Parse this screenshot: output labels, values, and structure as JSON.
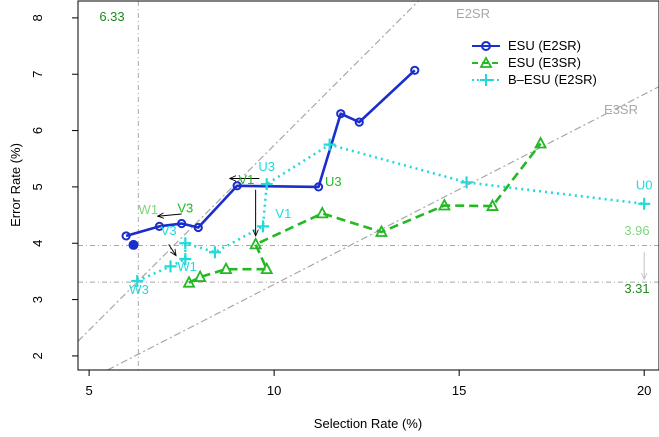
{
  "chart_data": {
    "type": "line",
    "xlabel": "Selection Rate (%)",
    "ylabel": "Error Rate (%)",
    "xlim": [
      4.7,
      20.4
    ],
    "ylim": [
      1.75,
      8.3
    ],
    "xticks": [
      5,
      10,
      15,
      20
    ],
    "yticks": [
      2,
      3,
      4,
      5,
      6,
      7,
      8
    ],
    "xtick_labels": [
      "5",
      "10",
      "15",
      "20"
    ],
    "ytick_labels": [
      "2",
      "3",
      "4",
      "5",
      "6",
      "7",
      "8"
    ],
    "grid": false,
    "legend": "top-right",
    "series": [
      {
        "name": "ESU (E2SR)",
        "color": "#1a2ecc",
        "marker": "circle",
        "line": "solid",
        "x": [
          6.0,
          6.9,
          7.5,
          7.95,
          9.0,
          11.2,
          11.8,
          12.3,
          13.8
        ],
        "y": [
          4.13,
          4.3,
          4.35,
          4.28,
          5.02,
          5.0,
          6.3,
          6.15,
          7.07
        ]
      },
      {
        "name": "ESU (E3SR)",
        "color": "#22b922",
        "marker": "triangle",
        "line": "dashed",
        "x": [
          7.7,
          8.0,
          8.7,
          9.8,
          9.5,
          11.3,
          12.9,
          14.6,
          15.9,
          17.2
        ],
        "y": [
          3.3,
          3.4,
          3.54,
          3.54,
          3.98,
          4.53,
          4.2,
          4.67,
          4.66,
          5.77
        ]
      },
      {
        "name": "B–ESU (E2SR)",
        "color": "#22dada",
        "marker": "plus",
        "line": "dotted",
        "x": [
          6.3,
          7.2,
          7.6,
          7.6,
          8.4,
          9.7,
          9.8,
          11.5,
          15.2,
          20.0
        ],
        "y": [
          3.33,
          3.59,
          3.72,
          4.0,
          3.84,
          4.3,
          5.05,
          5.75,
          5.08,
          4.7
        ]
      }
    ],
    "extra_points": [
      {
        "x": 6.2,
        "y": 3.97,
        "color": "#1a2ecc"
      }
    ],
    "diagonals": [
      {
        "label": "E2SR",
        "x": [
          4.7,
          13.9
        ],
        "y": [
          2.26,
          8.3
        ]
      },
      {
        "label": "E3SR",
        "x": [
          5.5,
          20.4
        ],
        "y": [
          1.75,
          6.78
        ]
      }
    ],
    "reference_lines": [
      {
        "orientation": "vertical",
        "value": 6.33,
        "label": "6.33"
      },
      {
        "orientation": "horizontal",
        "value": 3.96,
        "label": "3.96"
      },
      {
        "orientation": "horizontal",
        "value": 3.31,
        "label": "3.31"
      }
    ],
    "point_labels": [
      {
        "text": "V1",
        "x": 9.25,
        "y": 5.05,
        "color": "#22b922"
      },
      {
        "text": "U3",
        "x": 11.6,
        "y": 5.02,
        "color": "#22b922"
      },
      {
        "text": "W1",
        "x": 6.6,
        "y": 4.52,
        "color": "#7cd87c"
      },
      {
        "text": "V3",
        "x": 7.6,
        "y": 4.55,
        "color": "#22b922"
      },
      {
        "text": "U3",
        "x": 9.8,
        "y": 5.28,
        "color": "#22dada"
      },
      {
        "text": "V1",
        "x": 10.25,
        "y": 4.45,
        "color": "#22dada"
      },
      {
        "text": "V3",
        "x": 7.15,
        "y": 4.15,
        "color": "#22dada"
      },
      {
        "text": "W1",
        "x": 7.65,
        "y": 3.51,
        "color": "#22dada"
      },
      {
        "text": "W3",
        "x": 6.35,
        "y": 3.1,
        "color": "#22dada"
      },
      {
        "text": "U0",
        "x": 20.0,
        "y": 4.95,
        "color": "#22dada"
      }
    ],
    "arrows": [
      {
        "from": [
          9.6,
          5.15
        ],
        "to": [
          8.8,
          5.15
        ],
        "color": "#000000"
      },
      {
        "from": [
          7.5,
          4.52
        ],
        "to": [
          6.85,
          4.48
        ],
        "color": "#000000"
      },
      {
        "from": [
          9.5,
          4.95
        ],
        "to": [
          9.5,
          4.13
        ],
        "color": "#000000"
      },
      {
        "from": [
          7.15,
          3.98
        ],
        "to": [
          7.35,
          3.78
        ],
        "color": "#000000"
      },
      {
        "from": [
          20.0,
          3.84
        ],
        "to": [
          20.0,
          3.36
        ],
        "color": "#c0c0c0"
      }
    ]
  }
}
